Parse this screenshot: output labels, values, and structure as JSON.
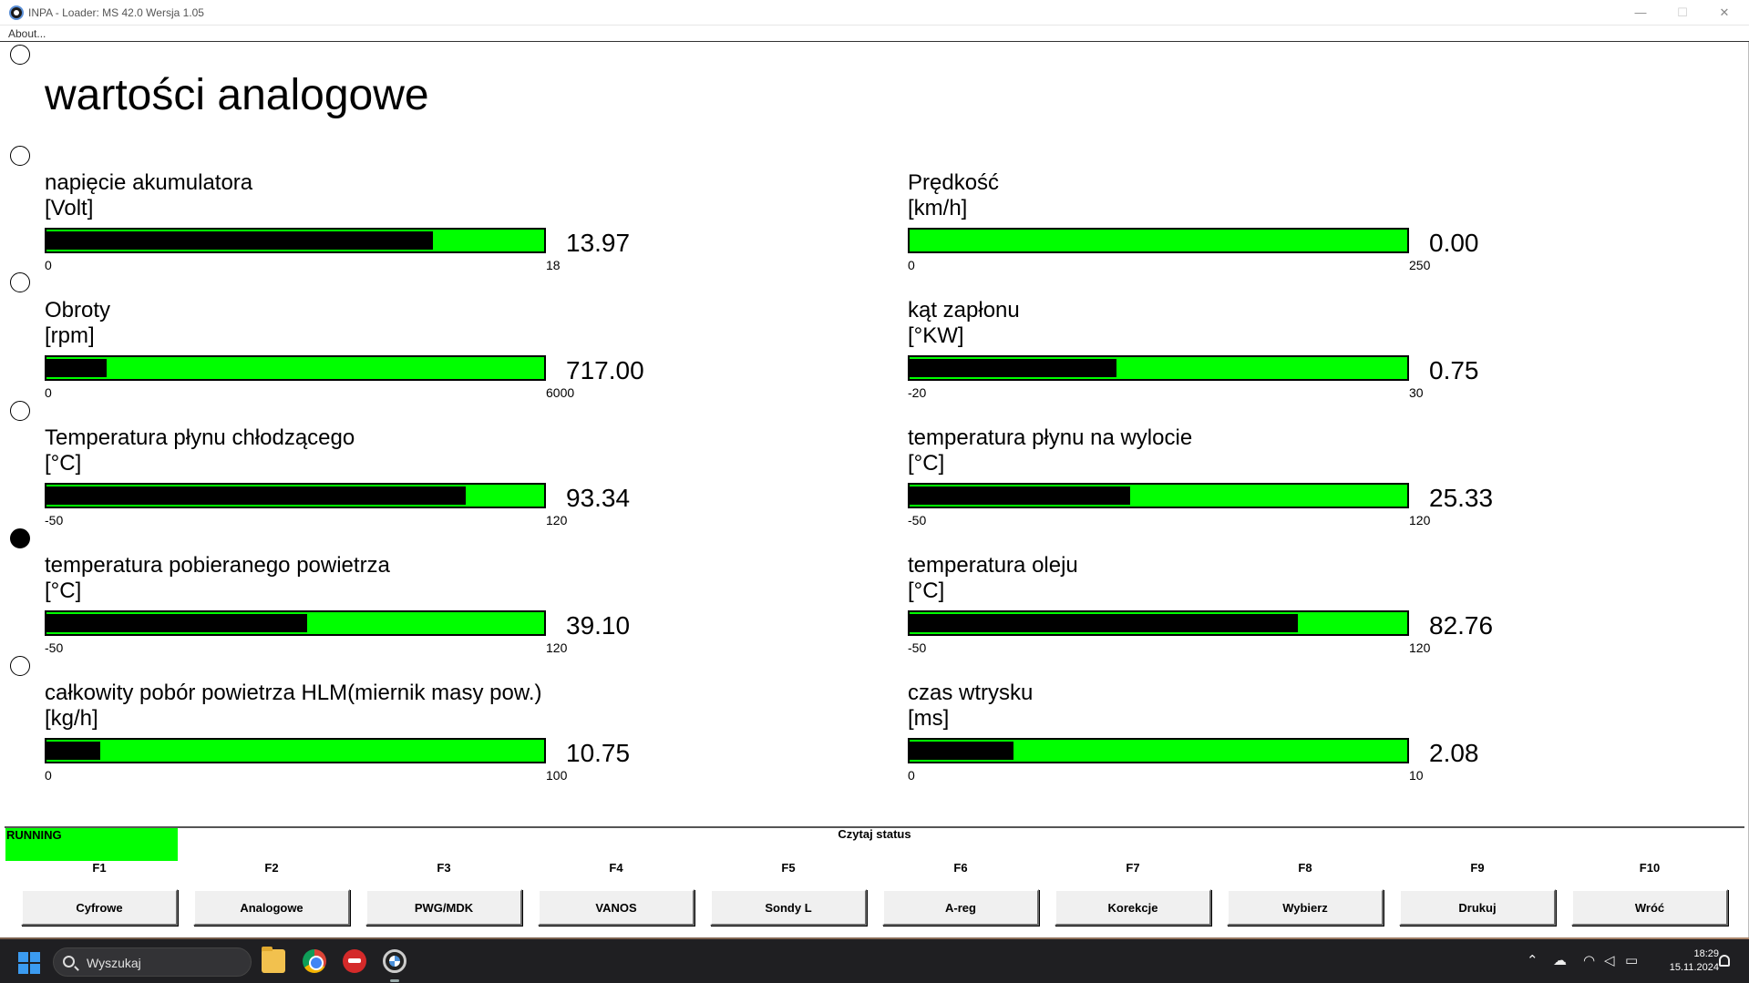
{
  "window": {
    "title": "INPA - Loader:  MS 42.0 Wersja 1.05",
    "menu_about": "About...",
    "minimize_glyph": "—",
    "maximize_glyph": "☐",
    "close_glyph": "✕"
  },
  "page": {
    "title": "wartości analogowe"
  },
  "radio_group": {
    "options_count": 6,
    "selected_index": 4
  },
  "gauges": [
    {
      "label": "napięcie akumulatora",
      "unit": "[Volt]",
      "min": "0",
      "max": "18",
      "value": "13.97",
      "fill": 0.776
    },
    {
      "label": "Prędkość",
      "unit": "[km/h]",
      "min": "0",
      "max": "250",
      "value": "0.00",
      "fill": 0.0
    },
    {
      "label": "Obroty",
      "unit": "[rpm]",
      "min": "0",
      "max": "6000",
      "value": "717.00",
      "fill": 0.12
    },
    {
      "label": "kąt zapłonu",
      "unit": "[°KW]",
      "min": "-20",
      "max": "30",
      "value": "0.75",
      "fill": 0.415
    },
    {
      "label": "Temperatura płynu chłodzącego",
      "unit": "[°C]",
      "min": "-50",
      "max": "120",
      "value": "93.34",
      "fill": 0.843
    },
    {
      "label": "temperatura płynu na wylocie",
      "unit": "[°C]",
      "min": "-50",
      "max": "120",
      "value": "25.33",
      "fill": 0.443
    },
    {
      "label": "temperatura pobieranego powietrza",
      "unit": "[°C]",
      "min": "-50",
      "max": "120",
      "value": "39.10",
      "fill": 0.524
    },
    {
      "label": "temperatura oleju",
      "unit": "[°C]",
      "min": "-50",
      "max": "120",
      "value": "82.76",
      "fill": 0.781
    },
    {
      "label": "całkowity pobór powietrza HLM(miernik masy pow.)",
      "unit": "[kg/h]",
      "min": "0",
      "max": "100",
      "value": "10.75",
      "fill": 0.108
    },
    {
      "label": "czas wtrysku",
      "unit": "[ms]",
      "min": "0",
      "max": "10",
      "value": "2.08",
      "fill": 0.208
    }
  ],
  "status": {
    "state": "RUNNING",
    "state_color": "#00ff00",
    "message": "Czytaj status"
  },
  "function_keys": [
    {
      "key": "F1",
      "label": "Cyfrowe"
    },
    {
      "key": "F2",
      "label": "Analogowe"
    },
    {
      "key": "F3",
      "label": "PWG/MDK"
    },
    {
      "key": "F4",
      "label": "VANOS"
    },
    {
      "key": "F5",
      "label": "Sondy L"
    },
    {
      "key": "F6",
      "label": "A-reg"
    },
    {
      "key": "F7",
      "label": "Korekcje"
    },
    {
      "key": "F8",
      "label": "Wybierz"
    },
    {
      "key": "F9",
      "label": "Drukuj"
    },
    {
      "key": "F10",
      "label": "Wróć"
    }
  ],
  "colors": {
    "bar_background": "#00ff00",
    "bar_fill": "#000000"
  },
  "taskbar": {
    "search_placeholder": "Wyszukaj",
    "apps": [
      "file-explorer-icon",
      "chrome-icon",
      "red-app-icon",
      "bmw-inpa-icon"
    ],
    "time": "18:29",
    "date": "15.11.2024"
  }
}
